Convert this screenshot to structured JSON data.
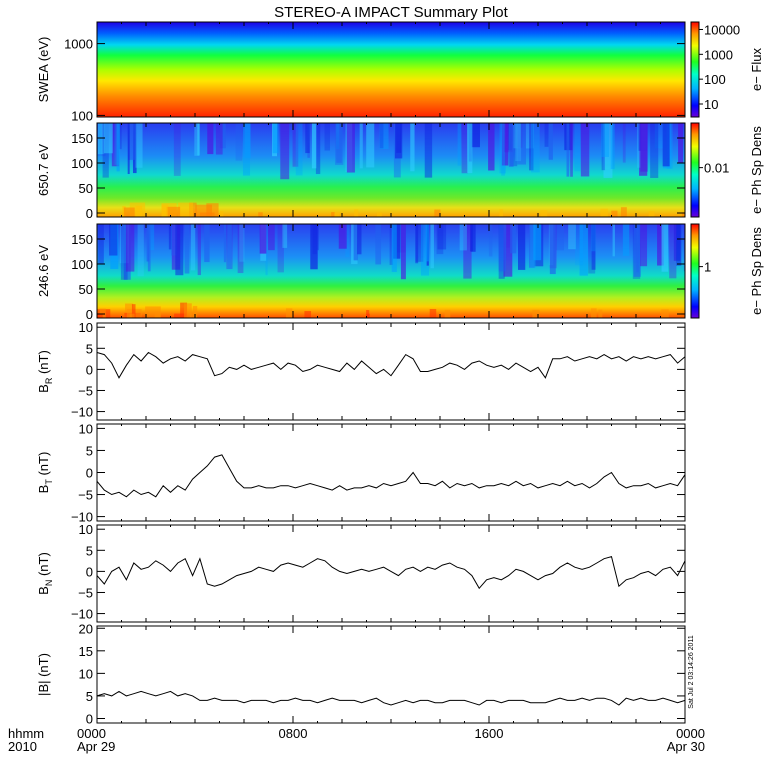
{
  "title": "STEREO-A IMPACT Summary Plot",
  "x_axis": {
    "label_line1": "hhmm",
    "label_line2": "2010",
    "ticks": [
      {
        "time": "0000",
        "date": "Apr 29",
        "hour": 0
      },
      {
        "time": "0800",
        "date": "",
        "hour": 8
      },
      {
        "time": "1600",
        "date": "",
        "hour": 16
      },
      {
        "time": "0000",
        "date": "Apr 30",
        "hour": 24
      }
    ],
    "range_hours": [
      0,
      24
    ]
  },
  "stamp": "Sat Jul  2 03:14:26 2011",
  "chart_data": [
    {
      "type": "heatmap",
      "ylabel": "SWEA (eV)",
      "ylog": true,
      "ylim": [
        95,
        2000
      ],
      "yticks": [
        {
          "v": 100,
          "label": "100"
        },
        {
          "v": 1000,
          "label": "1000"
        }
      ],
      "colorbar": {
        "label": "e− Flux",
        "log": true,
        "range": [
          3,
          20000
        ],
        "ticks": [
          {
            "v": 10,
            "label": "10"
          },
          {
            "v": 100,
            "label": "100"
          },
          {
            "v": 1000,
            "label": "1000"
          },
          {
            "v": 10000,
            "label": "10000"
          }
        ]
      }
    },
    {
      "type": "heatmap",
      "ylabel": "650.7 eV",
      "ylim": [
        -8,
        180
      ],
      "yticks": [
        {
          "v": 0,
          "label": "0"
        },
        {
          "v": 50,
          "label": "50"
        },
        {
          "v": 100,
          "label": "100"
        },
        {
          "v": 150,
          "label": "150"
        }
      ],
      "colorbar": {
        "label": "e− Ph Sp Dens",
        "log": true,
        "range": [
          0.0005,
          0.15
        ],
        "ticks": [
          {
            "v": 0.01,
            "label": "0.01"
          }
        ]
      }
    },
    {
      "type": "heatmap",
      "ylabel": "246.6 eV",
      "ylim": [
        -8,
        180
      ],
      "yticks": [
        {
          "v": 0,
          "label": "0"
        },
        {
          "v": 50,
          "label": "50"
        },
        {
          "v": 100,
          "label": "100"
        },
        {
          "v": 150,
          "label": "150"
        }
      ],
      "colorbar": {
        "label": "e− Ph Sp Dens",
        "log": true,
        "range": [
          0.05,
          12
        ],
        "ticks": [
          {
            "v": 1,
            "label": "1"
          }
        ]
      }
    },
    {
      "type": "line",
      "ylabel": "B",
      "ylabel_sub": "R",
      "ylabel_unit": " (nT)",
      "ylim": [
        -12,
        11
      ],
      "yticks": [
        {
          "v": -10,
          "label": "−10"
        },
        {
          "v": -5,
          "label": "−5"
        },
        {
          "v": 0,
          "label": "0"
        },
        {
          "v": 5,
          "label": "5"
        },
        {
          "v": 10,
          "label": "10"
        }
      ],
      "x": [
        0,
        0.3,
        0.6,
        0.9,
        1.2,
        1.5,
        1.8,
        2.1,
        2.4,
        2.7,
        3.0,
        3.3,
        3.6,
        3.9,
        4.2,
        4.5,
        4.8,
        5.1,
        5.4,
        5.7,
        6.0,
        6.3,
        6.6,
        6.9,
        7.2,
        7.5,
        7.8,
        8.1,
        8.4,
        8.7,
        9.0,
        9.3,
        9.6,
        9.9,
        10.2,
        10.5,
        10.8,
        11.1,
        11.4,
        11.7,
        12.0,
        12.3,
        12.6,
        12.9,
        13.2,
        13.5,
        13.8,
        14.1,
        14.4,
        14.7,
        15.0,
        15.3,
        15.6,
        15.9,
        16.2,
        16.5,
        16.8,
        17.1,
        17.4,
        17.7,
        18.0,
        18.3,
        18.6,
        18.9,
        19.2,
        19.5,
        19.8,
        20.1,
        20.4,
        20.7,
        21.0,
        21.3,
        21.6,
        21.9,
        22.2,
        22.5,
        22.8,
        23.1,
        23.4,
        23.7,
        24.0
      ],
      "y": [
        4,
        3.5,
        1.5,
        -2,
        1,
        3.5,
        2,
        4,
        3,
        1.5,
        2.5,
        3,
        2,
        3.5,
        3,
        2.5,
        -1.5,
        -1,
        0.5,
        0,
        1,
        0,
        0.5,
        1,
        1.5,
        0,
        1.5,
        1,
        -0.5,
        0,
        1,
        0.5,
        0,
        -0.5,
        1.5,
        0,
        2,
        0.5,
        -1,
        0,
        -1.5,
        1,
        3.5,
        2.5,
        -0.5,
        -0.5,
        0,
        0.5,
        1.5,
        1,
        0,
        1.5,
        2,
        1,
        0.5,
        1,
        0,
        1.5,
        0.5,
        -0.5,
        0.5,
        -2,
        2.5,
        2.5,
        3,
        2,
        2.5,
        3,
        2.5,
        3.5,
        2.5,
        3,
        2,
        3,
        2.5,
        3,
        2.5,
        3,
        3.5,
        1.5,
        3
      ]
    },
    {
      "type": "line",
      "ylabel": "B",
      "ylabel_sub": "T",
      "ylabel_unit": " (nT)",
      "ylim": [
        -11,
        11
      ],
      "yticks": [
        {
          "v": -10,
          "label": "−10"
        },
        {
          "v": -5,
          "label": "−5"
        },
        {
          "v": 0,
          "label": "0"
        },
        {
          "v": 5,
          "label": "5"
        },
        {
          "v": 10,
          "label": "10"
        }
      ],
      "x": [
        0,
        0.3,
        0.6,
        0.9,
        1.2,
        1.5,
        1.8,
        2.1,
        2.4,
        2.7,
        3.0,
        3.3,
        3.6,
        3.9,
        4.2,
        4.5,
        4.8,
        5.1,
        5.4,
        5.7,
        6.0,
        6.3,
        6.6,
        6.9,
        7.2,
        7.5,
        7.8,
        8.1,
        8.4,
        8.7,
        9.0,
        9.3,
        9.6,
        9.9,
        10.2,
        10.5,
        10.8,
        11.1,
        11.4,
        11.7,
        12.0,
        12.3,
        12.6,
        12.9,
        13.2,
        13.5,
        13.8,
        14.1,
        14.4,
        14.7,
        15.0,
        15.3,
        15.6,
        15.9,
        16.2,
        16.5,
        16.8,
        17.1,
        17.4,
        17.7,
        18.0,
        18.3,
        18.6,
        18.9,
        19.2,
        19.5,
        19.8,
        20.1,
        20.4,
        20.7,
        21.0,
        21.3,
        21.6,
        21.9,
        22.2,
        22.5,
        22.8,
        23.1,
        23.4,
        23.7,
        24.0
      ],
      "y": [
        -2,
        -4,
        -5,
        -4.5,
        -5.5,
        -4,
        -5,
        -4.5,
        -5.5,
        -3,
        -4.5,
        -3,
        -4,
        -1.5,
        0,
        1.5,
        3.5,
        4,
        1,
        -2,
        -3.5,
        -3.5,
        -3,
        -3.5,
        -3.5,
        -3,
        -3,
        -3.5,
        -3,
        -2.5,
        -3,
        -3.5,
        -4,
        -3,
        -4,
        -3.5,
        -3.5,
        -3,
        -3.5,
        -2.5,
        -3,
        -2.5,
        -2,
        0,
        -2.5,
        -2.5,
        -3,
        -2,
        -3.5,
        -2.5,
        -3,
        -2.5,
        -3.5,
        -3,
        -3,
        -2.5,
        -3,
        -2,
        -3,
        -2.5,
        -3.5,
        -3,
        -2.5,
        -3,
        -2,
        -3,
        -2.5,
        -3.5,
        -2.5,
        -1,
        0,
        -2.5,
        -3.5,
        -3,
        -3,
        -2.5,
        -3.5,
        -3,
        -2.5,
        -3,
        -0.5
      ]
    },
    {
      "type": "line",
      "ylabel": "B",
      "ylabel_sub": "N",
      "ylabel_unit": " (nT)",
      "ylim": [
        -12,
        11
      ],
      "yticks": [
        {
          "v": -10,
          "label": "−10"
        },
        {
          "v": -5,
          "label": "−5"
        },
        {
          "v": 0,
          "label": "0"
        },
        {
          "v": 5,
          "label": "5"
        },
        {
          "v": 10,
          "label": "10"
        }
      ],
      "x": [
        0,
        0.3,
        0.6,
        0.9,
        1.2,
        1.5,
        1.8,
        2.1,
        2.4,
        2.7,
        3.0,
        3.3,
        3.6,
        3.9,
        4.2,
        4.5,
        4.8,
        5.1,
        5.4,
        5.7,
        6.0,
        6.3,
        6.6,
        6.9,
        7.2,
        7.5,
        7.8,
        8.1,
        8.4,
        8.7,
        9.0,
        9.3,
        9.6,
        9.9,
        10.2,
        10.5,
        10.8,
        11.1,
        11.4,
        11.7,
        12.0,
        12.3,
        12.6,
        12.9,
        13.2,
        13.5,
        13.8,
        14.1,
        14.4,
        14.7,
        15.0,
        15.3,
        15.6,
        15.9,
        16.2,
        16.5,
        16.8,
        17.1,
        17.4,
        17.7,
        18.0,
        18.3,
        18.6,
        18.9,
        19.2,
        19.5,
        19.8,
        20.1,
        20.4,
        20.7,
        21.0,
        21.3,
        21.6,
        21.9,
        22.2,
        22.5,
        22.8,
        23.1,
        23.4,
        23.7,
        24.0
      ],
      "y": [
        -1,
        -3,
        0,
        1,
        -2,
        2,
        0.5,
        1,
        2.5,
        1.5,
        0,
        2,
        3,
        -1,
        3,
        -3,
        -3.5,
        -3,
        -2,
        -1,
        -0.5,
        0,
        1,
        0.5,
        0,
        1.5,
        2,
        1.5,
        1,
        2,
        3,
        2.5,
        1,
        0,
        -0.5,
        0,
        0.5,
        0,
        0.5,
        1,
        0,
        -1,
        0.5,
        1,
        0,
        1,
        0.5,
        1.5,
        2,
        1,
        0.5,
        -1,
        -4,
        -2,
        -1.5,
        -2,
        -1,
        0.5,
        0,
        -1,
        -2,
        -1,
        -0.5,
        1,
        2,
        1,
        0.5,
        1,
        2,
        3,
        3.5,
        -3.5,
        -2,
        -1.5,
        -0.5,
        0,
        -1,
        0.5,
        1,
        -1,
        2.5
      ]
    },
    {
      "type": "line",
      "ylabel": "|B| (nT)",
      "ylim": [
        -1,
        20.5
      ],
      "yticks": [
        {
          "v": 0,
          "label": "0"
        },
        {
          "v": 5,
          "label": "5"
        },
        {
          "v": 10,
          "label": "10"
        },
        {
          "v": 15,
          "label": "15"
        },
        {
          "v": 20,
          "label": "20"
        }
      ],
      "x": [
        0,
        0.3,
        0.6,
        0.9,
        1.2,
        1.5,
        1.8,
        2.1,
        2.4,
        2.7,
        3.0,
        3.3,
        3.6,
        3.9,
        4.2,
        4.5,
        4.8,
        5.1,
        5.4,
        5.7,
        6.0,
        6.3,
        6.6,
        6.9,
        7.2,
        7.5,
        7.8,
        8.1,
        8.4,
        8.7,
        9.0,
        9.3,
        9.6,
        9.9,
        10.2,
        10.5,
        10.8,
        11.1,
        11.4,
        11.7,
        12.0,
        12.3,
        12.6,
        12.9,
        13.2,
        13.5,
        13.8,
        14.1,
        14.4,
        14.7,
        15.0,
        15.3,
        15.6,
        15.9,
        16.2,
        16.5,
        16.8,
        17.1,
        17.4,
        17.7,
        18.0,
        18.3,
        18.6,
        18.9,
        19.2,
        19.5,
        19.8,
        20.1,
        20.4,
        20.7,
        21.0,
        21.3,
        21.6,
        21.9,
        22.2,
        22.5,
        22.8,
        23.1,
        23.4,
        23.7,
        24.0
      ],
      "y": [
        5,
        5.5,
        5,
        6,
        5,
        5.5,
        6,
        5.5,
        5,
        5.5,
        6,
        5,
        5.5,
        5,
        4,
        4,
        4.5,
        4,
        4,
        4,
        3.5,
        4,
        4,
        4,
        3.5,
        4,
        4,
        4.5,
        4,
        4,
        3.5,
        4,
        4.5,
        4,
        4,
        4,
        3.5,
        4,
        4.5,
        3.5,
        3,
        3.5,
        4,
        3.5,
        4,
        4,
        3.5,
        3.5,
        4,
        4,
        4,
        3.5,
        3,
        4,
        4,
        3.5,
        4,
        4,
        4,
        3.5,
        3.5,
        3.5,
        4,
        4.5,
        4,
        4,
        4.5,
        4,
        4.5,
        4.5,
        4,
        3,
        4.5,
        4,
        4.5,
        4,
        4,
        4.5,
        4,
        3.5,
        4
      ]
    }
  ]
}
